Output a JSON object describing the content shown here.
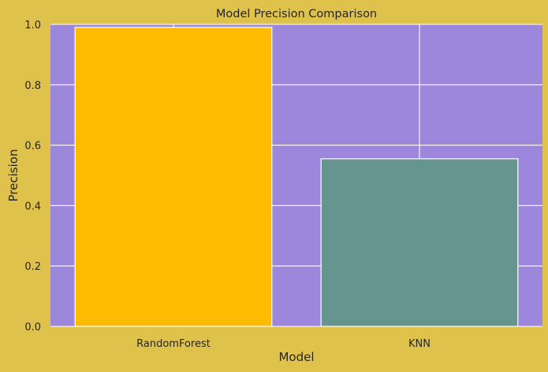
{
  "chart_data": {
    "type": "bar",
    "title": "Model Precision Comparison",
    "xlabel": "Model",
    "ylabel": "Precision",
    "categories": [
      "RandomForest",
      "KNN"
    ],
    "values": [
      0.99,
      0.555
    ],
    "bar_colors": [
      "#FFBB00",
      "#66948F"
    ],
    "ylim": [
      0,
      1.0
    ],
    "yticks": [
      "0.0",
      "0.2",
      "0.4",
      "0.6",
      "0.8",
      "1.0"
    ],
    "grid": true,
    "legend": "none",
    "colors": {
      "figure_background": "#DFC24C",
      "plot_background": "#9D87DC",
      "grid": "#FFFFFF",
      "text": "#262626"
    }
  }
}
